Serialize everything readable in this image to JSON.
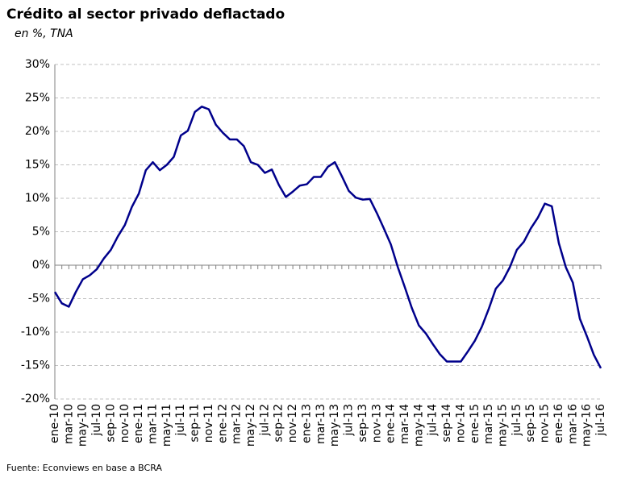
{
  "chart_data": {
    "type": "line",
    "title": "Crédito al sector privado deflactado",
    "subtitle": "en %, TNA",
    "source": "Fuente:  Econviews en base a BCRA",
    "categories": [
      "ene-10",
      null,
      "mar-10",
      null,
      "may-10",
      null,
      "jul-10",
      null,
      "sep-10",
      null,
      "nov-10",
      null,
      "ene-11",
      null,
      "mar-11",
      null,
      "may-11",
      null,
      "jul-11",
      null,
      "sep-11",
      null,
      "nov-11",
      null,
      "ene-12",
      null,
      "mar-12",
      null,
      "may-12",
      null,
      "jul-12",
      null,
      "sep-12",
      null,
      "nov-12",
      null,
      "ene-13",
      null,
      "mar-13",
      null,
      "may-13",
      null,
      "jul-13",
      null,
      "sep-13",
      null,
      "nov-13",
      null,
      "ene-14",
      null,
      "mar-14",
      null,
      "may-14",
      null,
      "jul-14",
      null,
      "sep-14",
      null,
      "nov-14",
      null,
      "ene-15",
      null,
      "mar-15",
      null,
      "may-15",
      null,
      "jul-15",
      null,
      "sep-15",
      null,
      "nov-15",
      null,
      "ene-16",
      null,
      "mar-16",
      null,
      "may-16",
      null,
      "jul-16"
    ],
    "series": [
      {
        "color": "#00008b",
        "values": [
          -4,
          -5.7,
          -6.2,
          -4,
          -2.1,
          -1.5,
          -0.6,
          1,
          2.3,
          4.3,
          6,
          8.7,
          10.7,
          14.2,
          15.4,
          14.2,
          15,
          16.2,
          19.4,
          20.1,
          22.9,
          23.7,
          23.3,
          21,
          19.8,
          18.8,
          18.8,
          17.8,
          15.4,
          15,
          13.8,
          14.3,
          12,
          10.2,
          11,
          11.9,
          12.1,
          13.2,
          13.2,
          14.7,
          15.4,
          13.3,
          11.1,
          10.1,
          9.8,
          9.9,
          7.8,
          5.5,
          3.1,
          -0.3,
          -3.3,
          -6.4,
          -9,
          -10.2,
          -11.8,
          -13.3,
          -14.4,
          -14.4,
          -14.4,
          -12.9,
          -11.3,
          -9.2,
          -6.5,
          -3.5,
          -2.3,
          -0.3,
          2.3,
          3.5,
          5.5,
          7.1,
          9.2,
          8.8,
          3.3,
          -0.3,
          -2.6,
          -8,
          -10.6,
          -13.4,
          -15.4
        ]
      }
    ],
    "ylim": [
      -20,
      30
    ],
    "yticks": [
      {
        "value": -20,
        "label": "-20%"
      },
      {
        "value": -15,
        "label": "-15%"
      },
      {
        "value": -10,
        "label": "-10%"
      },
      {
        "value": -5,
        "label": "-5%"
      },
      {
        "value": 0,
        "label": "0%"
      },
      {
        "value": 5,
        "label": "5%"
      },
      {
        "value": 10,
        "label": "10%"
      },
      {
        "value": 15,
        "label": "15%"
      },
      {
        "value": 20,
        "label": "20%"
      },
      {
        "value": 25,
        "label": "25%"
      },
      {
        "value": 30,
        "label": "30%"
      }
    ],
    "grid": true
  }
}
